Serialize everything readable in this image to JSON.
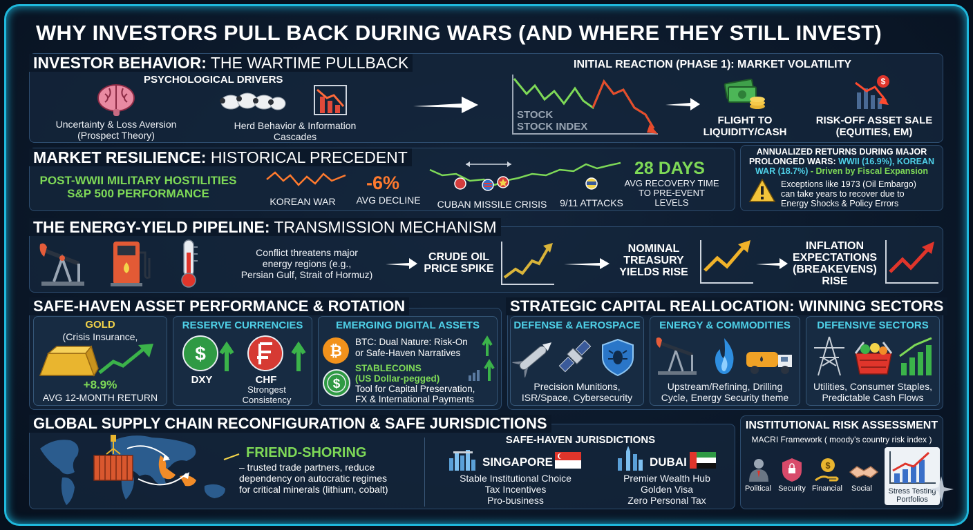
{
  "title": "WHY INVESTORS PULL BACK DURING WARS (AND WHERE THEY STILL INVEST)",
  "behavior": {
    "heading_bold": "INVESTOR BEHAVIOR:",
    "heading_light": " THE WARTIME PULLBACK",
    "psych_title": "PSYCHOLOGICAL DRIVERS",
    "uncertainty": "Uncertainty & Loss Aversion",
    "prospect": "(Prospect Theory)",
    "herd": "Herd Behavior & Information",
    "cascades": "Cascades",
    "initial_title": "INITIAL REACTION (PHASE 1): MARKET VOLATILITY",
    "stock_label1": "STOCK",
    "stock_label2": "STOCK INDEX",
    "flight1": "FLIGHT TO",
    "flight2": "LIQUIDITY/CASH",
    "riskoff1": "RISK-OFF ASSET SALE",
    "riskoff2": "(EQUITIES, EM)"
  },
  "resilience": {
    "heading_bold": "MARKET RESILIENCE:",
    "heading_light": " HISTORICAL PRECEDENT",
    "post1": "POST-WWII MILITARY HOSTILITIES",
    "post2": "S&P 500 PERFORMANCE",
    "korean": "KOREAN WAR",
    "decline_value": "-6%",
    "decline_label": "AVG DECLINE",
    "cuban": "CUBAN MISSILE CRISIS",
    "attacks": "9/11 ATTACKS",
    "days_value": "28 DAYS",
    "days_l1": "AVG RECOVERY TIME",
    "days_l2": "TO PRE-EVENT",
    "days_l3": "LEVELS",
    "ann_l1": "ANNUALIZED RETURNS DURING MAJOR",
    "ann_l2a": "PROLONGED WARS: ",
    "ann_l2b": "WWII (16.9%), KOREAN",
    "ann_l3a": "WAR (18.7%)",
    "ann_l3b": " - Driven by Fiscal Expansion",
    "exc_l1": "Exceptions like 1973 (Oil Embargo)",
    "exc_l2": "can take years to recover due to",
    "exc_l3": "Energy Shocks & Policy Errors"
  },
  "energy": {
    "heading_bold": "THE ENERGY-YIELD PIPELINE:",
    "heading_light": " TRANSMISSION MECHANISM",
    "conflict1": "Conflict threatens major",
    "conflict2": "energy regions (e.g.,",
    "conflict3": "Persian Gulf, Strait of Hormuz)",
    "crude1": "CRUDE OIL",
    "crude2": "PRICE SPIKE",
    "nominal1": "NOMINAL",
    "nominal2": "TREASURY",
    "nominal3": "YIELDS RISE",
    "infl1": "INFLATION",
    "infl2": "EXPECTATIONS",
    "infl3": "(BREAKEVENS)",
    "infl4": "RISE"
  },
  "safehaven": {
    "heading": "SAFE-HAVEN ASSET PERFORMANCE & ROTATION",
    "gold_title": "GOLD",
    "gold_sub": "(Crisis Insurance,",
    "gold_ret": "+8.9%",
    "gold_ret_label": "AVG 12-MONTH RETURN",
    "reserve_title": "RESERVE CURRENCIES",
    "dxy": "DXY",
    "chf": "CHF",
    "chf_sub1": "Strongest",
    "chf_sub2": "Consistency",
    "digital_title": "EMERGING DIGITAL ASSETS",
    "btc1": "BTC: Dual Nature: Risk-On",
    "btc2": "or Safe-Haven Narratives",
    "stable1": "STABLECOINS",
    "stable2": "(US Dollar-pegged)",
    "stable3": "Tool for Capital Preservation,",
    "stable4": "FX & International Payments"
  },
  "strategic": {
    "heading": "STRATEGIC CAPITAL REALLOCATION: WINNING SECTORS",
    "defense_title": "DEFENSE & AEROSPACE",
    "defense1": "Precision Munitions,",
    "defense2": "ISR/Space, Cybersecurity",
    "energy_title": "ENERGY & COMMODITIES",
    "energy1": "Upstream/Refining, Drilling",
    "energy2": "Cycle, Energy Security theme",
    "defsec_title": "DEFENSIVE SECTORS",
    "defsec1": "Utilities, Consumer Staples,",
    "defsec2": "Predictable Cash Flows"
  },
  "supply": {
    "heading": "GLOBAL SUPPLY CHAIN RECONFIGURATION & SAFE JURISDICTIONS",
    "friend": "FRIEND-SHORING",
    "friend1": "– trusted trade partners, reduce",
    "friend2": "dependency on autocratic regimes",
    "friend3": "for critical minerals (lithium, cobalt)",
    "juris_title": "SAFE-HAVEN JURISDICTIONS",
    "sg": "SINGAPORE",
    "sg1": "Stable Institutional Choice",
    "sg2": "Tax Incentives",
    "sg3": "Pro-business",
    "dubai": "DUBAI",
    "du1": "Premier Wealth Hub",
    "du2": "Golden Visa",
    "du3": "Zero Personal Tax"
  },
  "institutional": {
    "title": "INSTITUTIONAL RISK ASSESSMENT",
    "sub": "MACRI Framework ( moody's country risk index )",
    "political": "Political",
    "security": "Security",
    "financial": "Financial",
    "social": "Social",
    "stress1": "Stress Testing",
    "stress2": "Portfolios"
  },
  "colors": {
    "frame": "#1fb8dc",
    "green": "#7ed957",
    "orange": "#ff7a2e",
    "yellow": "#f3d44a",
    "red": "#e23b3b"
  }
}
